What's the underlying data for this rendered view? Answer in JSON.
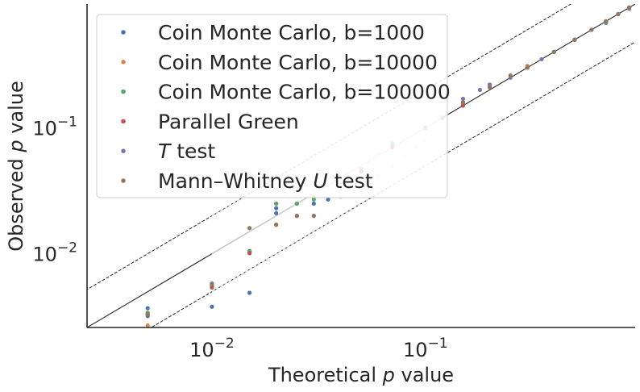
{
  "chart_data": {
    "type": "scatter",
    "title": "",
    "xlabel": "Theoretical $p$ value",
    "ylabel": "Observed $p$ value",
    "xscale": "log",
    "yscale": "log",
    "xlim": [
      0.0026,
      0.96
    ],
    "ylim": [
      0.0026,
      0.96
    ],
    "x_ticks": [
      {
        "value": 0.01,
        "base": "10",
        "exp": "−2"
      },
      {
        "value": 0.1,
        "base": "10",
        "exp": "−1"
      }
    ],
    "y_ticks": [
      {
        "value": 0.01,
        "base": "10",
        "exp": "−2"
      },
      {
        "value": 0.1,
        "base": "10",
        "exp": "−1"
      }
    ],
    "grid": false,
    "legend_position": "top-left",
    "reference_lines": [
      {
        "name": "identity",
        "factor": 1,
        "style": "solid"
      },
      {
        "name": "upper-band",
        "factor": 2,
        "style": "dashed"
      },
      {
        "name": "lower-band",
        "factor": 0.5,
        "style": "dashed"
      }
    ],
    "series": [
      {
        "name": "Coin Monte Carlo, b=1000",
        "color": "#4c72b0",
        "x": [
          0.005,
          0.005,
          0.01,
          0.01,
          0.015,
          0.015,
          0.02,
          0.02,
          0.025,
          0.03,
          0.035,
          0.05,
          0.07,
          0.1,
          0.15,
          0.2,
          0.3,
          0.5,
          0.7,
          0.9
        ],
        "y": [
          0.0037,
          0.0032,
          0.0058,
          0.0038,
          0.0105,
          0.0049,
          0.023,
          0.021,
          0.025,
          0.025,
          0.027,
          0.045,
          0.075,
          0.1,
          0.16,
          0.22,
          0.3,
          0.5,
          0.68,
          0.88
        ]
      },
      {
        "name": "Coin Monte Carlo, b=10000",
        "color": "#dd8452",
        "x": [
          0.005,
          0.005,
          0.01,
          0.015,
          0.02,
          0.025,
          0.03,
          0.05,
          0.07,
          0.1,
          0.15,
          0.2,
          0.3,
          0.5,
          0.7,
          0.9
        ],
        "y": [
          0.0034,
          0.0027,
          0.0055,
          0.0102,
          0.025,
          0.025,
          0.028,
          0.047,
          0.072,
          0.1,
          0.15,
          0.21,
          0.31,
          0.5,
          0.69,
          0.89
        ]
      },
      {
        "name": "Coin Monte Carlo, b=100000",
        "color": "#55a868",
        "x": [
          0.005,
          0.01,
          0.015,
          0.02,
          0.025,
          0.03,
          0.05,
          0.07,
          0.1,
          0.15,
          0.2,
          0.3,
          0.5,
          0.7,
          0.9
        ],
        "y": [
          0.0034,
          0.0056,
          0.0104,
          0.025,
          0.025,
          0.027,
          0.046,
          0.073,
          0.1,
          0.155,
          0.21,
          0.3,
          0.5,
          0.69,
          0.9
        ]
      },
      {
        "name": "Parallel Green",
        "color": "#c44e52",
        "x": [
          0.005,
          0.01,
          0.015,
          0.02,
          0.025,
          0.03,
          0.05,
          0.07,
          0.1,
          0.15,
          0.2,
          0.3,
          0.5,
          0.7,
          0.9
        ],
        "y": [
          0.0033,
          0.0054,
          0.0101,
          0.017,
          0.02,
          0.02,
          0.045,
          0.07,
          0.1,
          0.15,
          0.21,
          0.3,
          0.5,
          0.7,
          0.9
        ]
      },
      {
        "name": "$T$ test",
        "color": "#8172b3",
        "x": [
          0.1,
          0.12,
          0.15,
          0.18,
          0.2,
          0.25,
          0.3,
          0.35,
          0.4,
          0.5,
          0.6,
          0.7,
          0.8,
          0.9
        ],
        "y": [
          0.1,
          0.12,
          0.17,
          0.2,
          0.22,
          0.25,
          0.3,
          0.35,
          0.4,
          0.5,
          0.6,
          0.7,
          0.8,
          0.9
        ]
      },
      {
        "name": "Mann–Whitney $U$ test",
        "color": "#937860",
        "x": [
          0.005,
          0.01,
          0.015,
          0.02,
          0.025,
          0.03,
          0.1,
          0.12,
          0.15,
          0.2,
          0.25,
          0.3,
          0.4,
          0.5,
          0.6,
          0.7,
          0.8,
          0.9
        ],
        "y": [
          0.0033,
          0.0057,
          0.016,
          0.017,
          0.02,
          0.02,
          0.1,
          0.12,
          0.16,
          0.21,
          0.26,
          0.3,
          0.4,
          0.5,
          0.6,
          0.7,
          0.8,
          0.9
        ]
      }
    ]
  }
}
